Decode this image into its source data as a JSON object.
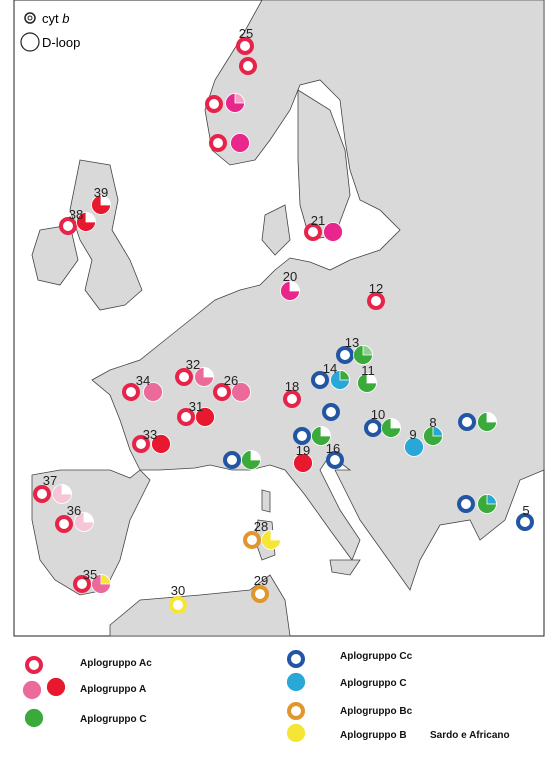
{
  "legend_top": {
    "small": {
      "text": "cyt ",
      "italic": "b"
    },
    "large": "D-loop"
  },
  "sites": [
    "25",
    "39",
    "38",
    "21",
    "20",
    "12",
    "13",
    "14",
    "11",
    "32",
    "34",
    "26",
    "18",
    "31",
    "10",
    "9",
    "8",
    "33",
    "16",
    "19",
    "37",
    "36",
    "28",
    "29",
    "30",
    "35",
    "5"
  ],
  "legend": [
    "Aplogruppo Ac",
    "Aplogruppo A",
    "Aplogruppo C",
    "Aplogruppo Cc",
    "Aplogruppo C",
    "Aplogruppo Bc",
    "Aplogruppo B",
    "Sardo e Africano"
  ]
}
